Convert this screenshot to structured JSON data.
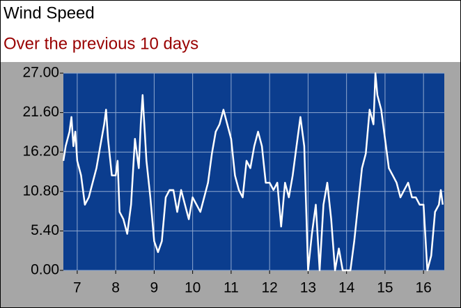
{
  "chart_data": {
    "type": "line",
    "title": "Wind Speed",
    "subtitle": "Over the previous 10 days",
    "x": [
      6.64,
      6.7,
      6.8,
      6.85,
      6.9,
      6.95,
      7.0,
      7.1,
      7.2,
      7.3,
      7.4,
      7.5,
      7.6,
      7.7,
      7.75,
      7.8,
      7.9,
      8.0,
      8.05,
      8.1,
      8.2,
      8.3,
      8.4,
      8.5,
      8.6,
      8.65,
      8.7,
      8.8,
      8.9,
      9.0,
      9.1,
      9.2,
      9.3,
      9.4,
      9.5,
      9.6,
      9.7,
      9.8,
      9.9,
      10.0,
      10.1,
      10.2,
      10.3,
      10.4,
      10.5,
      10.6,
      10.7,
      10.8,
      10.9,
      11.0,
      11.1,
      11.2,
      11.3,
      11.4,
      11.5,
      11.6,
      11.7,
      11.8,
      11.9,
      12.0,
      12.1,
      12.2,
      12.3,
      12.4,
      12.5,
      12.6,
      12.7,
      12.8,
      12.9,
      13.0,
      13.1,
      13.2,
      13.3,
      13.4,
      13.5,
      13.6,
      13.7,
      13.8,
      13.9,
      14.0,
      14.1,
      14.2,
      14.3,
      14.4,
      14.5,
      14.6,
      14.7,
      14.75,
      14.8,
      14.9,
      15.0,
      15.1,
      15.2,
      15.3,
      15.4,
      15.5,
      15.6,
      15.7,
      15.8,
      15.9,
      16.0,
      16.1,
      16.2,
      16.3,
      16.4,
      16.45,
      16.5
    ],
    "series": [
      {
        "name": "Wind Speed",
        "color": "#ffffff",
        "values": [
          15,
          17,
          19,
          21,
          17,
          19,
          15,
          13,
          9,
          10,
          12,
          14,
          17,
          20,
          22,
          18,
          13,
          13,
          15,
          8,
          7,
          5,
          9,
          18,
          14,
          20,
          24,
          15,
          10,
          4,
          2.5,
          4,
          10,
          11,
          11,
          8,
          11,
          9,
          7,
          10,
          9,
          8,
          10,
          12,
          16,
          19,
          20,
          22,
          20,
          18,
          13,
          11,
          10,
          15,
          14,
          17,
          19,
          17,
          12,
          12,
          11,
          12,
          6,
          12,
          10,
          13,
          17,
          21,
          17,
          0,
          5,
          9,
          0,
          9,
          12,
          7,
          0,
          3,
          0,
          0,
          0,
          4,
          9,
          14,
          16,
          22,
          20,
          27,
          24,
          22,
          18,
          14,
          13,
          12,
          10,
          11,
          12,
          10,
          10,
          9,
          9,
          0,
          2,
          8,
          9,
          11,
          9
        ]
      }
    ],
    "xlim": [
      6.64,
      16.54
    ],
    "ylim": [
      0,
      27
    ],
    "xticks": [
      7,
      8,
      9,
      10,
      11,
      12,
      13,
      14,
      15,
      16
    ],
    "yticks": [
      {
        "value": 0,
        "label": "0.00"
      },
      {
        "value": 5.4,
        "label": "5.40"
      },
      {
        "value": 10.8,
        "label": "10.80"
      },
      {
        "value": 16.2,
        "label": "16.20"
      },
      {
        "value": 21.6,
        "label": "21.60"
      },
      {
        "value": 27,
        "label": "27.00"
      }
    ],
    "grid": true,
    "background": "#0b3d8e"
  }
}
